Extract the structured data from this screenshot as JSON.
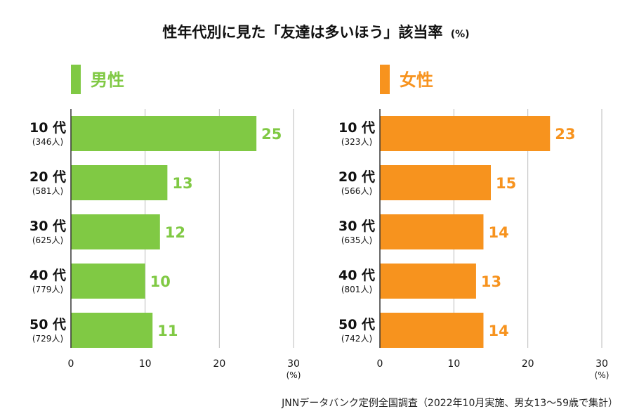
{
  "title": {
    "main": "性年代別に見た「友達は多いほう」該当率",
    "unit": "(%)"
  },
  "source": "JNNデータバンク定例全国調査（2022年10月実施、男女13～59歳で集計）",
  "colors": {
    "male": "#80c944",
    "female": "#f7931e",
    "grid": "#bbbbbb",
    "axis": "#333333"
  },
  "chart_data": [
    {
      "type": "bar",
      "orientation": "horizontal",
      "panel": "male",
      "legend": "男性",
      "categories": [
        "10代",
        "20代",
        "30代",
        "40代",
        "50代"
      ],
      "category_labels": [
        "10 代",
        "20 代",
        "30 代",
        "40 代",
        "50 代"
      ],
      "sample_sizes": [
        "(346人)",
        "(581人)",
        "(625人)",
        "(779人)",
        "(729人)"
      ],
      "values": [
        25,
        13,
        12,
        10,
        11
      ],
      "value_labels": [
        "25",
        "13",
        "12",
        "10",
        "11"
      ],
      "xlim": [
        0,
        30
      ],
      "xticks": [
        0,
        10,
        20,
        30
      ],
      "xtick_labels": [
        "0",
        "10",
        "20",
        "30"
      ],
      "xunit": "(%)",
      "grid": true
    },
    {
      "type": "bar",
      "orientation": "horizontal",
      "panel": "female",
      "legend": "女性",
      "categories": [
        "10代",
        "20代",
        "30代",
        "40代",
        "50代"
      ],
      "category_labels": [
        "10 代",
        "20 代",
        "30 代",
        "40 代",
        "50 代"
      ],
      "sample_sizes": [
        "(323人)",
        "(566人)",
        "(635人)",
        "(801人)",
        "(742人)"
      ],
      "values": [
        23,
        15,
        14,
        13,
        14
      ],
      "value_labels": [
        "23",
        "15",
        "14",
        "13",
        "14"
      ],
      "xlim": [
        0,
        30
      ],
      "xticks": [
        0,
        10,
        20,
        30
      ],
      "xtick_labels": [
        "0",
        "10",
        "20",
        "30"
      ],
      "xunit": "(%)",
      "grid": true
    }
  ]
}
